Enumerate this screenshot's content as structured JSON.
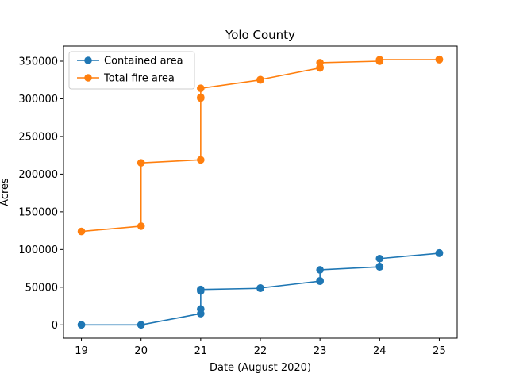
{
  "chart_data": {
    "type": "line",
    "title": "Yolo County",
    "xlabel": "Date (August 2020)",
    "ylabel": "Acres",
    "xlim": [
      18.7,
      25.3
    ],
    "ylim": [
      -17600,
      370000
    ],
    "x_ticks": [
      19,
      20,
      21,
      22,
      23,
      24,
      25
    ],
    "x_tick_labels": [
      "19",
      "20",
      "21",
      "22",
      "23",
      "24",
      "25"
    ],
    "y_ticks": [
      0,
      50000,
      100000,
      150000,
      200000,
      250000,
      300000,
      350000
    ],
    "y_tick_labels": [
      "0",
      "50000",
      "100000",
      "150000",
      "200000",
      "250000",
      "300000",
      "350000"
    ],
    "grid": false,
    "legend_position": "top-left",
    "series": [
      {
        "name": "Contained area",
        "color": "#1f77b4",
        "marker": "circle",
        "points": [
          [
            19,
            0
          ],
          [
            19,
            0
          ],
          [
            20,
            0
          ],
          [
            20,
            0
          ],
          [
            21,
            15000
          ],
          [
            21,
            21000
          ],
          [
            21,
            45000
          ],
          [
            21,
            47000
          ],
          [
            22,
            48500
          ],
          [
            22,
            49000
          ],
          [
            23,
            58000
          ],
          [
            23,
            58500
          ],
          [
            23,
            73000
          ],
          [
            24,
            77000
          ],
          [
            24,
            77500
          ],
          [
            24,
            88000
          ],
          [
            25,
            95000
          ],
          [
            25,
            95500
          ]
        ]
      },
      {
        "name": "Total fire area",
        "color": "#ff7f0e",
        "marker": "circle",
        "points": [
          [
            19,
            124000
          ],
          [
            20,
            131000
          ],
          [
            20,
            215000
          ],
          [
            21,
            219000
          ],
          [
            21,
            301000
          ],
          [
            21,
            302000
          ],
          [
            21,
            314000
          ],
          [
            22,
            325000
          ],
          [
            22,
            325500
          ],
          [
            23,
            341000
          ],
          [
            23,
            342000
          ],
          [
            23,
            348000
          ],
          [
            24,
            350000
          ],
          [
            24,
            351000
          ],
          [
            24,
            352000
          ],
          [
            25,
            352000
          ],
          [
            25,
            352500
          ]
        ]
      }
    ]
  }
}
